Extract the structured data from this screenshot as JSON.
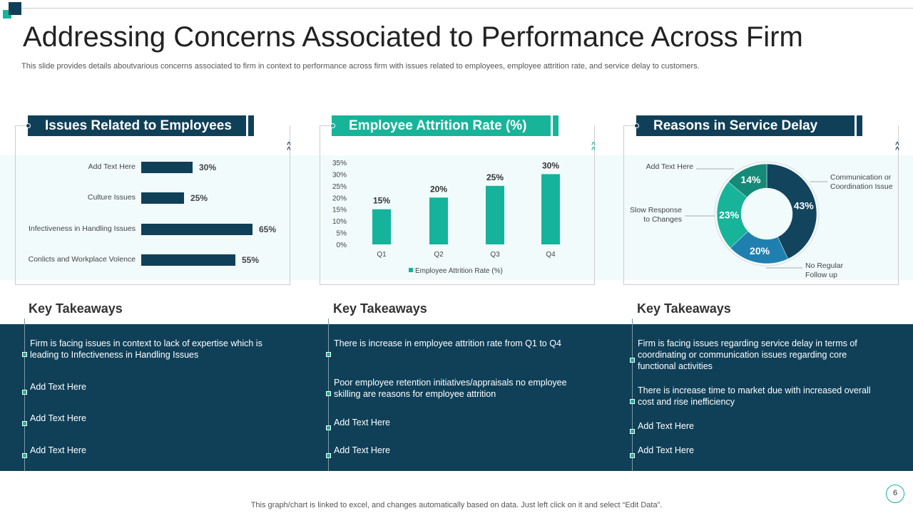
{
  "title": "Addressing Concerns Associated to Performance Across Firm",
  "subtitle": "This slide provides details aboutvarious concerns associated to firm in context to performance across firm with issues related to employees, employee attrition rate, and service delay to customers.",
  "panels": {
    "p1": "Issues Related to Employees",
    "p2": "Employee Attrition Rate (%)",
    "p3": "Reasons in Service Delay"
  },
  "takeaways": {
    "heading": "Key Takeaways",
    "col1": [
      "Firm is facing issues in context to lack of expertise which is leading to Infectiveness  in Handling Issues",
      "Add Text Here",
      "Add Text Here",
      "Add Text Here"
    ],
    "col2": [
      "There is increase in employee attrition rate from Q1 to Q4",
      "Poor employee retention initiatives/appraisals no employee skilling are reasons for employee attrition",
      "Add Text Here",
      "Add Text Here"
    ],
    "col3": [
      "Firm is facing issues regarding  service delay in terms of coordinating or communication issues regarding core functional activities",
      "There  is increase time to market due with increased overall cost and rise inefficiency",
      "Add Text Here",
      "Add Text Here"
    ]
  },
  "footer": "This graph/chart is linked to excel,  and changes automatically based on data. Just left click on it and select “Edit Data”.",
  "page_number": "6",
  "colors": {
    "dark": "#0f4058",
    "teal": "#18b49a",
    "band": "#f1fbfb"
  },
  "chart_data": [
    {
      "type": "bar",
      "orientation": "horizontal",
      "title": "Issues Related to Employees",
      "categories": [
        "Add Text Here",
        "Culture Issues",
        "Infectiveness in Handling Issues",
        "Conlicts and Workplace Volence"
      ],
      "values": [
        30,
        25,
        65,
        55
      ],
      "labels": [
        "30%",
        "25%",
        "65%",
        "55%"
      ]
    },
    {
      "type": "bar",
      "title": "Employee Attrition Rate (%)",
      "categories": [
        "Q1",
        "Q2",
        "Q3",
        "Q4"
      ],
      "values": [
        15,
        20,
        25,
        30
      ],
      "labels": [
        "15%",
        "20%",
        "25%",
        "30%"
      ],
      "yticks": [
        "0%",
        "5%",
        "10%",
        "15%",
        "20%",
        "25%",
        "30%",
        "35%"
      ],
      "ylim": [
        0,
        35
      ],
      "legend": "Employee Attrition Rate (%)",
      "legend_position": "bottom"
    },
    {
      "type": "pie",
      "title": "Reasons in Service Delay",
      "categories": [
        "Communication or Coordination Issue",
        "No Regular Follow up",
        "Slow Response to Changes",
        "Add Text Here"
      ],
      "values": [
        43,
        20,
        23,
        14
      ],
      "labels": [
        "43%",
        "20%",
        "23%",
        "14%"
      ],
      "colors": [
        "#12445e",
        "#1f80b0",
        "#18b49a",
        "#158a78"
      ]
    }
  ]
}
